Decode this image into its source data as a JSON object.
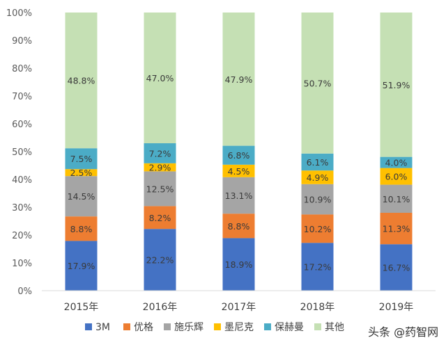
{
  "chart_data": {
    "type": "bar",
    "stacked": true,
    "categories": [
      "2015年",
      "2016年",
      "2017年",
      "2018年",
      "2019年"
    ],
    "series": [
      {
        "name": "3M",
        "color": "#4472C4",
        "values": [
          17.9,
          22.2,
          18.9,
          17.2,
          16.7
        ],
        "labels": [
          "17.9%",
          "22.2%",
          "18.9%",
          "17.2%",
          "16.7%"
        ]
      },
      {
        "name": "优格",
        "color": "#ED7D31",
        "values": [
          8.8,
          8.2,
          8.8,
          10.2,
          11.3
        ],
        "labels": [
          "8.8%",
          "8.2%",
          "8.8%",
          "10.2%",
          "11.3%"
        ]
      },
      {
        "name": "施乐辉",
        "color": "#A5A5A5",
        "values": [
          14.5,
          12.5,
          13.1,
          10.9,
          10.1
        ],
        "labels": [
          "14.5%",
          "12.5%",
          "13.1%",
          "10.9%",
          "10.1%"
        ]
      },
      {
        "name": "墨尼克",
        "color": "#FFC000",
        "values": [
          2.5,
          2.9,
          4.5,
          4.9,
          6.0
        ],
        "labels": [
          "2.5%",
          "2.9%",
          "4.5%",
          "4.9%",
          "6.0%"
        ]
      },
      {
        "name": "保赫曼",
        "color": "#4BACC6",
        "values": [
          7.5,
          7.2,
          6.8,
          6.1,
          4.0
        ],
        "labels": [
          "7.5%",
          "7.2%",
          "6.8%",
          "6.1%",
          "4.0%"
        ]
      },
      {
        "name": "其他",
        "color": "#C5E0B4",
        "values": [
          48.8,
          47.0,
          47.9,
          50.7,
          51.9
        ],
        "labels": [
          "48.8%",
          "47.0%",
          "47.9%",
          "50.7%",
          "51.9%"
        ]
      }
    ],
    "ylim": [
      0,
      100
    ],
    "yticks": [
      "0%",
      "10%",
      "20%",
      "30%",
      "40%",
      "50%",
      "60%",
      "70%",
      "80%",
      "90%",
      "100%"
    ],
    "legend_position": "bottom",
    "grid": false
  },
  "watermark": {
    "text": "头条 @药智网"
  }
}
